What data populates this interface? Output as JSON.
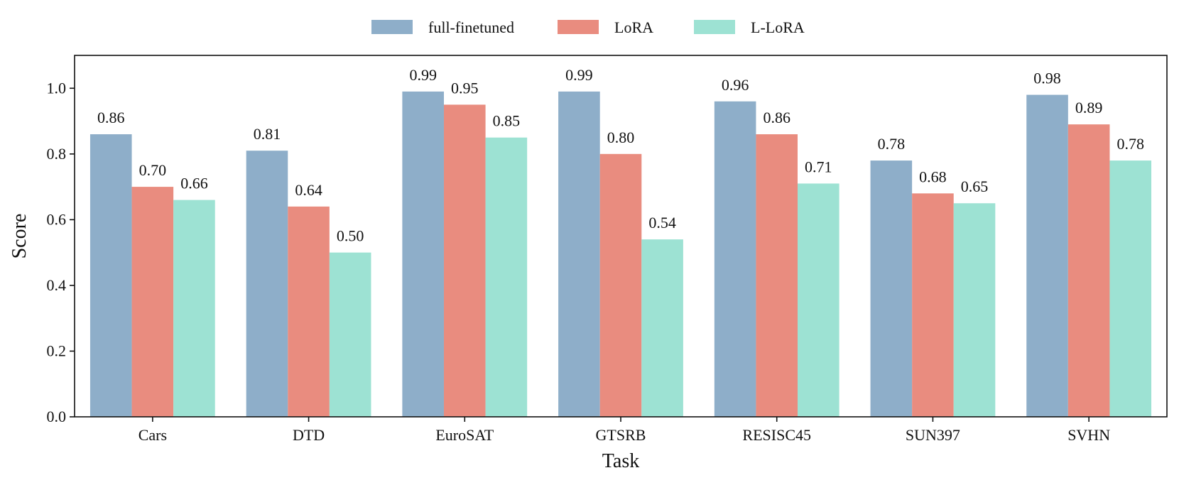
{
  "chart_data": {
    "type": "bar",
    "title": "",
    "xlabel": "Task",
    "ylabel": "Score",
    "ylim": [
      0,
      1.1
    ],
    "yticks": [
      "0.0",
      "0.2",
      "0.4",
      "0.6",
      "0.8",
      "1.0"
    ],
    "categories": [
      "Cars",
      "DTD",
      "EuroSAT",
      "GTSRB",
      "RESISC45",
      "SUN397",
      "SVHN"
    ],
    "legend_position": "top-center",
    "series": [
      {
        "name": "full-finetuned",
        "color": "#8eaec9",
        "values": [
          0.86,
          0.81,
          0.99,
          0.99,
          0.96,
          0.78,
          0.98
        ],
        "labels": [
          "0.86",
          "0.81",
          "0.99",
          "0.99",
          "0.96",
          "0.78",
          "0.98"
        ]
      },
      {
        "name": "LoRA",
        "color": "#e98c7f",
        "values": [
          0.7,
          0.64,
          0.95,
          0.8,
          0.86,
          0.68,
          0.89
        ],
        "labels": [
          "0.70",
          "0.64",
          "0.95",
          "0.80",
          "0.86",
          "0.68",
          "0.89"
        ]
      },
      {
        "name": "L-LoRA",
        "color": "#9de2d3",
        "values": [
          0.66,
          0.5,
          0.85,
          0.54,
          0.71,
          0.65,
          0.78
        ],
        "labels": [
          "0.66",
          "0.50",
          "0.85",
          "0.54",
          "0.71",
          "0.65",
          "0.78"
        ]
      }
    ]
  }
}
